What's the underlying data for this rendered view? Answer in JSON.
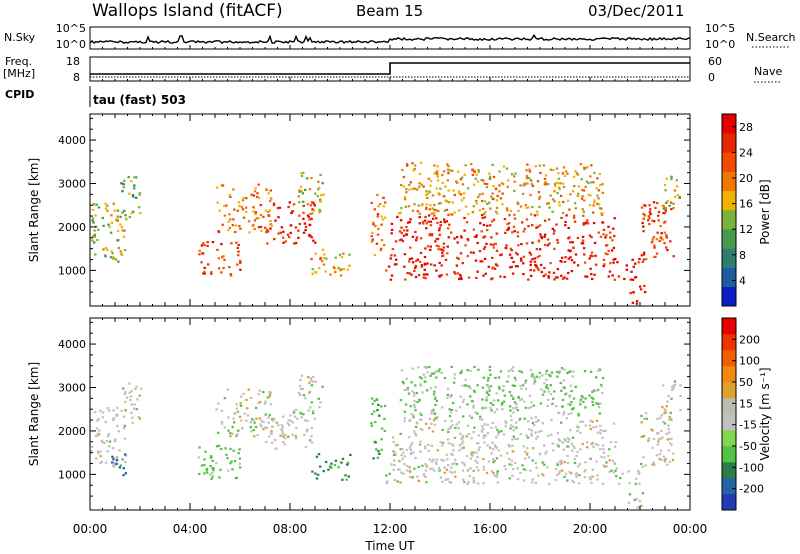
{
  "header": {
    "station": "Wallops Island (fitACF)",
    "beam": "Beam 15",
    "date": "03/Dec/2011"
  },
  "strip": {
    "nsky_label": "N.Sky",
    "nsearch_label": "N.Search",
    "noise_ticks": [
      "10^5",
      "10^0"
    ],
    "freq_label_line1": "Freq.",
    "freq_label_line2": "[MHz]",
    "freq_ticks": [
      "18",
      "8"
    ],
    "nave_label": "Nave",
    "nave_ticks": [
      "60",
      "0"
    ],
    "cpid_label": "CPID",
    "cpid_value": "tau (fast) 503"
  },
  "colors": {
    "power": [
      "#0a1ec8",
      "#1e5aa0",
      "#2f7d6e",
      "#4a9a4e",
      "#7ab23a",
      "#f0b400",
      "#f07800",
      "#f04b00",
      "#e62800",
      "#e60000"
    ],
    "velocity": [
      "#1e3cb4",
      "#2264a6",
      "#2a7c4a",
      "#54c244",
      "#7fd850",
      "#c0c0c0",
      "#bcbcb0",
      "#e0a030",
      "#ef8a10",
      "#f06000",
      "#ee3200",
      "#e60000"
    ]
  },
  "chart_data": [
    {
      "type": "heatmap",
      "name": "power",
      "ylabel": "Slant Range [km]",
      "yticks": [
        1000,
        2000,
        3000,
        4000
      ],
      "ylim": [
        180,
        4600
      ],
      "xlim": [
        0,
        24
      ],
      "colorbar_label": "Power [dB]",
      "colorbar_ticks": [
        4,
        8,
        12,
        16,
        20,
        24,
        28
      ],
      "colorbar_range": [
        0,
        30
      ],
      "scatter_regions": [
        {
          "t": [
            0.0,
            1.4
          ],
          "r": [
            1200,
            2600
          ],
          "v": 14
        },
        {
          "t": [
            1.2,
            2.0
          ],
          "r": [
            2200,
            3200
          ],
          "v": 12
        },
        {
          "t": [
            4.3,
            6.0
          ],
          "r": [
            900,
            1700
          ],
          "v": 24
        },
        {
          "t": [
            5.0,
            7.3
          ],
          "r": [
            1900,
            3000
          ],
          "v": 20
        },
        {
          "t": [
            7.0,
            9.0
          ],
          "r": [
            1600,
            2600
          ],
          "v": 26
        },
        {
          "t": [
            8.3,
            9.3
          ],
          "r": [
            2300,
            3300
          ],
          "v": 16
        },
        {
          "t": [
            8.8,
            10.4
          ],
          "r": [
            900,
            1500
          ],
          "v": 18
        },
        {
          "t": [
            11.2,
            11.8
          ],
          "r": [
            1300,
            2800
          ],
          "v": 20
        },
        {
          "t": [
            11.8,
            22.0
          ],
          "r": [
            800,
            1300
          ],
          "v": 28
        },
        {
          "t": [
            12.0,
            21.0
          ],
          "r": [
            1300,
            2300
          ],
          "v": 26
        },
        {
          "t": [
            12.3,
            20.5
          ],
          "r": [
            2300,
            3500
          ],
          "v": 18
        },
        {
          "t": [
            21.5,
            22.2
          ],
          "r": [
            250,
            700
          ],
          "v": 28
        },
        {
          "t": [
            22.0,
            23.3
          ],
          "r": [
            1200,
            2600
          ],
          "v": 24
        },
        {
          "t": [
            22.8,
            23.6
          ],
          "r": [
            2400,
            3200
          ],
          "v": 16
        }
      ]
    },
    {
      "type": "heatmap",
      "name": "velocity",
      "ylabel": "Slant Range [km]",
      "xlabel": "Time UT",
      "xticks": [
        "00:00",
        "04:00",
        "08:00",
        "12:00",
        "16:00",
        "20:00",
        "00:00"
      ],
      "yticks": [
        1000,
        2000,
        3000,
        4000
      ],
      "ylim": [
        180,
        4600
      ],
      "xlim": [
        0,
        24
      ],
      "colorbar_label": "Velocity [m s⁻¹]",
      "colorbar_ticks": [
        200,
        100,
        50,
        15,
        -15,
        -50,
        -100,
        -200
      ],
      "scatter_regions": [
        {
          "t": [
            0.0,
            1.4
          ],
          "r": [
            1200,
            2600
          ],
          "v": 0
        },
        {
          "t": [
            0.8,
            1.4
          ],
          "r": [
            1000,
            1500
          ],
          "v": 150
        },
        {
          "t": [
            1.2,
            2.0
          ],
          "r": [
            2200,
            3200
          ],
          "v": 0
        },
        {
          "t": [
            4.3,
            6.0
          ],
          "r": [
            900,
            1700
          ],
          "v": 30
        },
        {
          "t": [
            5.0,
            7.3
          ],
          "r": [
            1900,
            3000
          ],
          "v": 0
        },
        {
          "t": [
            7.0,
            9.0
          ],
          "r": [
            1600,
            2600
          ],
          "v": 0
        },
        {
          "t": [
            8.3,
            9.3
          ],
          "r": [
            2300,
            3300
          ],
          "v": 0
        },
        {
          "t": [
            8.8,
            10.4
          ],
          "r": [
            900,
            1500
          ],
          "v": 60
        },
        {
          "t": [
            11.2,
            11.8
          ],
          "r": [
            1300,
            2800
          ],
          "v": 40
        },
        {
          "t": [
            11.8,
            22.0
          ],
          "r": [
            800,
            1300
          ],
          "v": 0
        },
        {
          "t": [
            12.0,
            21.0
          ],
          "r": [
            1300,
            2300
          ],
          "v": 0
        },
        {
          "t": [
            12.3,
            20.5
          ],
          "r": [
            2300,
            3500
          ],
          "v": 20
        },
        {
          "t": [
            21.5,
            22.2
          ],
          "r": [
            250,
            700
          ],
          "v": 0
        },
        {
          "t": [
            22.0,
            23.3
          ],
          "r": [
            1200,
            2600
          ],
          "v": 0
        },
        {
          "t": [
            22.8,
            23.6
          ],
          "r": [
            2400,
            3200
          ],
          "v": 0
        }
      ]
    }
  ]
}
